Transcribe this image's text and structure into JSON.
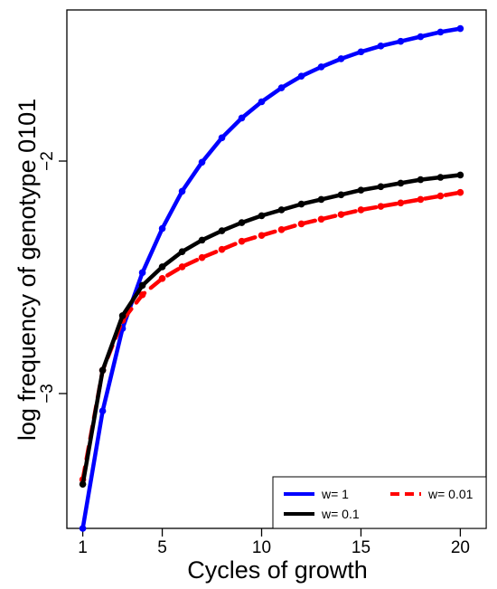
{
  "chart_data": {
    "type": "line",
    "xlabel": "Cycles of growth",
    "ylabel": "log frequency of genotype 0101",
    "xlim": [
      0.2,
      21.3
    ],
    "ylim": [
      -3.58,
      -1.35
    ],
    "x_ticks": [
      1,
      5,
      10,
      15,
      20
    ],
    "x_tick_labels": [
      "1",
      "5",
      "10",
      "15",
      "20"
    ],
    "y_ticks": [
      -3,
      -2
    ],
    "y_tick_labels": [
      "−3",
      "−2"
    ],
    "legend_placement": "bottom-right",
    "x": [
      1,
      2,
      3,
      4,
      5,
      6,
      7,
      8,
      9,
      10,
      11,
      12,
      13,
      14,
      15,
      16,
      17,
      18,
      19,
      20
    ],
    "series": [
      {
        "name": "w= 1",
        "color": "#0000ff",
        "line_style": "solid",
        "values": [
          -3.58,
          -3.075,
          -2.72,
          -2.48,
          -2.29,
          -2.13,
          -2.005,
          -1.9,
          -1.815,
          -1.745,
          -1.685,
          -1.635,
          -1.595,
          -1.56,
          -1.53,
          -1.505,
          -1.485,
          -1.465,
          -1.445,
          -1.43
        ]
      },
      {
        "name": "w= 0.1",
        "color": "#000000",
        "line_style": "solid",
        "values": [
          -3.39,
          -2.9,
          -2.665,
          -2.535,
          -2.455,
          -2.39,
          -2.34,
          -2.3,
          -2.265,
          -2.235,
          -2.21,
          -2.185,
          -2.165,
          -2.145,
          -2.125,
          -2.11,
          -2.095,
          -2.08,
          -2.07,
          -2.06
        ]
      },
      {
        "name": "w= 0.01",
        "color": "#ff0000",
        "line_style": "dashed",
        "values": [
          -3.37,
          -2.9,
          -2.685,
          -2.575,
          -2.505,
          -2.455,
          -2.415,
          -2.38,
          -2.345,
          -2.32,
          -2.295,
          -2.27,
          -2.25,
          -2.23,
          -2.21,
          -2.195,
          -2.18,
          -2.165,
          -2.15,
          -2.135
        ]
      }
    ]
  }
}
